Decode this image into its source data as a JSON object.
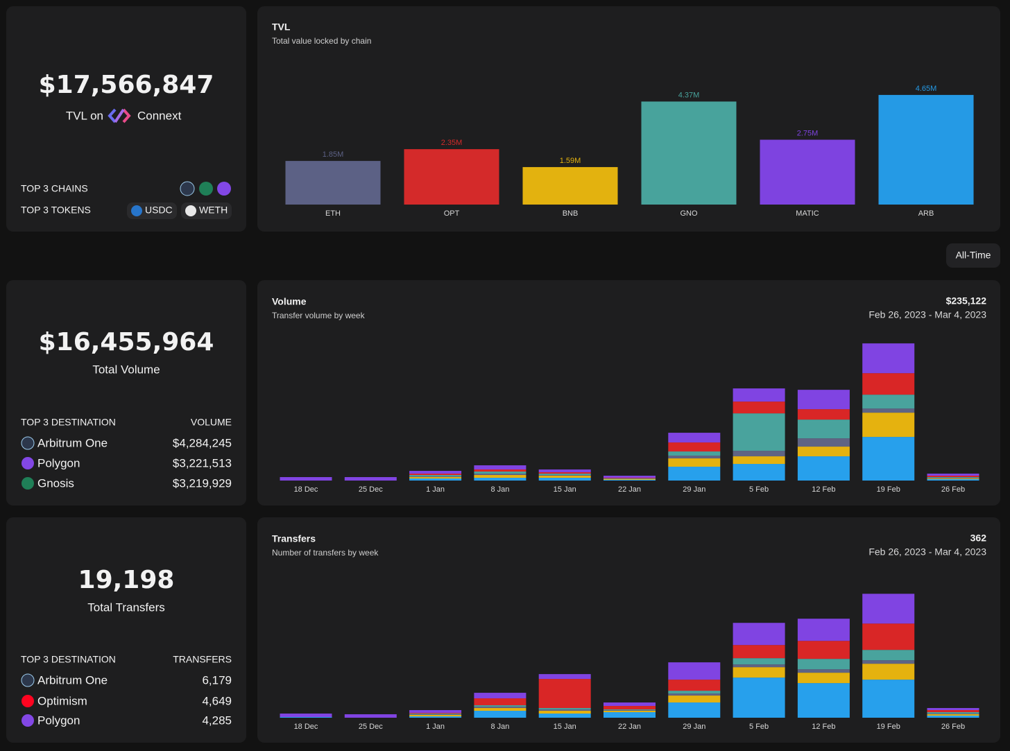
{
  "tvl_card": {
    "value": "$17,566,847",
    "caption_prefix": "TVL on",
    "brand": "Connext",
    "top_chains_label": "TOP 3 CHAINS",
    "top_tokens_label": "TOP 3 TOKENS",
    "tokens": [
      "USDC",
      "WETH"
    ]
  },
  "range_button": "All-Time",
  "volume_card": {
    "value": "$16,455,964",
    "caption": "Total Volume",
    "list_header": "TOP 3 DESTINATION",
    "value_header": "VOLUME",
    "rows": [
      {
        "name": "Arbitrum One",
        "value": "$4,284,245"
      },
      {
        "name": "Polygon",
        "value": "$3,221,513"
      },
      {
        "name": "Gnosis",
        "value": "$3,219,929"
      }
    ]
  },
  "transfers_card": {
    "value": "19,198",
    "caption": "Total Transfers",
    "list_header": "TOP 3 DESTINATION",
    "value_header": "TRANSFERS",
    "rows": [
      {
        "name": "Arbitrum One",
        "value": "6,179"
      },
      {
        "name": "Optimism",
        "value": "4,649"
      },
      {
        "name": "Polygon",
        "value": "4,285"
      }
    ]
  },
  "chart_data": [
    {
      "type": "bar",
      "title": "TVL",
      "subtitle": "Total value locked by chain",
      "categories": [
        "ETH",
        "OPT",
        "BNB",
        "GNO",
        "MATIC",
        "ARB"
      ],
      "values": [
        1850000,
        2350000,
        1590000,
        4370000,
        2750000,
        4650000
      ],
      "value_labels": [
        "1.85M",
        "2.35M",
        "1.59M",
        "4.37M",
        "2.75M",
        "4.65M"
      ],
      "colors": [
        "#5c6185",
        "#d42a2a",
        "#e3b20f",
        "#48a39c",
        "#7e43e0",
        "#259ae5"
      ],
      "ylim": [
        0,
        5000000
      ]
    },
    {
      "type": "stacked_bar",
      "title": "Volume",
      "subtitle": "Transfer volume by week",
      "total": "$235,122",
      "period": "Feb 26, 2023 - Mar 4, 2023",
      "categories": [
        "18 Dec",
        "25 Dec",
        "1 Jan",
        "8 Jan",
        "15 Jan",
        "22 Jan",
        "29 Jan",
        "5 Feb",
        "12 Feb",
        "19 Feb",
        "26 Feb"
      ],
      "series": [
        {
          "color": "#27a0ec",
          "values": [
            0,
            0,
            67500,
            90000,
            90000,
            22500,
            450000,
            540000,
            787500,
            1417500,
            45000
          ]
        },
        {
          "color": "#e5b20f",
          "values": [
            0,
            0,
            45000,
            90000,
            67500,
            22500,
            270000,
            247500,
            315000,
            787500,
            22500
          ]
        },
        {
          "color": "#5f6483",
          "values": [
            0,
            0,
            22500,
            45000,
            22500,
            0,
            90000,
            180000,
            270000,
            135000,
            22500
          ]
        },
        {
          "color": "#49a39d",
          "values": [
            0,
            0,
            45000,
            67500,
            45000,
            22500,
            135000,
            1215000,
            607500,
            450000,
            22500
          ]
        },
        {
          "color": "#d92626",
          "values": [
            0,
            0,
            45000,
            67500,
            45000,
            22500,
            292500,
            382500,
            337500,
            697500,
            45000
          ]
        },
        {
          "color": "#8044e2",
          "values": [
            112500,
            112500,
            90000,
            135000,
            90000,
            67500,
            315000,
            427500,
            630000,
            967500,
            67500
          ]
        }
      ],
      "ylim": [
        0,
        5000000
      ]
    },
    {
      "type": "stacked_bar",
      "title": "Transfers",
      "subtitle": "Number of transfers by week",
      "total": "362",
      "period": "Feb 26, 2023 - Mar 4, 2023",
      "categories": [
        "18 Dec",
        "25 Dec",
        "1 Jan",
        "8 Jan",
        "15 Jan",
        "22 Jan",
        "29 Jan",
        "5 Feb",
        "12 Feb",
        "19 Feb",
        "26 Feb"
      ],
      "series": [
        {
          "color": "#27a0ec",
          "values": [
            26,
            0,
            52,
            260,
            156,
            208,
            572,
            1508,
            1300,
            1430,
            78
          ]
        },
        {
          "color": "#e5b20f",
          "values": [
            0,
            0,
            52,
            104,
            104,
            52,
            260,
            390,
            390,
            598,
            52
          ]
        },
        {
          "color": "#5f6483",
          "values": [
            0,
            0,
            26,
            52,
            52,
            26,
            78,
            104,
            130,
            130,
            26
          ]
        },
        {
          "color": "#49a39d",
          "values": [
            0,
            0,
            26,
            52,
            52,
            26,
            104,
            234,
            390,
            390,
            52
          ]
        },
        {
          "color": "#d92626",
          "values": [
            0,
            0,
            26,
            260,
            1092,
            130,
            416,
            494,
            676,
            988,
            78
          ]
        },
        {
          "color": "#8044e2",
          "values": [
            130,
            130,
            104,
            208,
            182,
            130,
            650,
            832,
            832,
            1118,
            78
          ]
        }
      ],
      "ylim": [
        0,
        5000
      ]
    }
  ]
}
